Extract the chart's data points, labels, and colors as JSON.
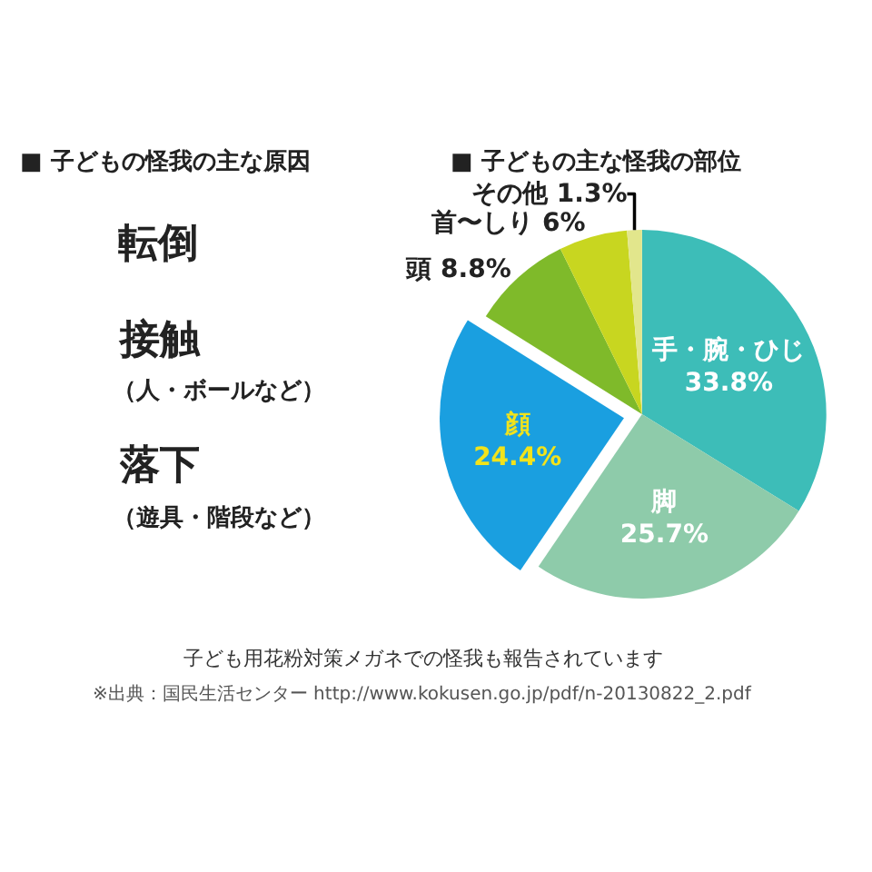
{
  "chart_data": [
    {
      "type": "other",
      "title": "■ 子どもの怪我の主な原因",
      "annotations": [
        "転倒",
        "接触",
        "（人・ボールなど）",
        "落下",
        "（遊具・階段など）"
      ]
    },
    {
      "type": "pie",
      "title": "■ 子どもの主な怪我の部位",
      "categories": [
        "手・腕・ひじ",
        "脚",
        "顔",
        "頭",
        "首〜しり",
        "その他"
      ],
      "values": [
        33.8,
        25.7,
        24.4,
        8.8,
        6,
        1.3
      ],
      "colors": [
        "#3dbdb8",
        "#8ecbaa",
        "#1a9fe0",
        "#7fba2a",
        "#c8d620",
        "#e2e68c"
      ],
      "value_labels": [
        "33.8%",
        "25.7%",
        "24.4%",
        "8.8%",
        "6%",
        "1.3%"
      ],
      "annotations": [
        "子ども用花粉対策メガネでの怪我も報告されています",
        "※出典：国民生活センター http://www.kokusen.go.jp/pdf/n-20130822_2.pdf"
      ]
    }
  ]
}
